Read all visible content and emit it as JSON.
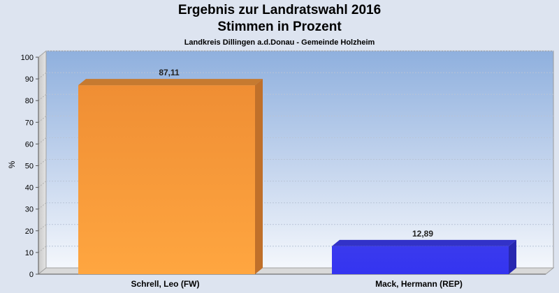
{
  "chart_data": {
    "type": "bar",
    "title": "Ergebnis zur Landratswahl 2016",
    "subtitle_line2": "Stimmen in Prozent",
    "subtitle": "Landkreis Dillingen a.d.Donau - Gemeinde Holzheim",
    "ylabel": "%",
    "xlabel": "",
    "ylim": [
      0,
      100
    ],
    "yticks": [
      0,
      10,
      20,
      30,
      40,
      50,
      60,
      70,
      80,
      90,
      100
    ],
    "categories": [
      "Schrell, Leo (FW)",
      "Mack, Hermann (REP)"
    ],
    "values": [
      87.11,
      12.89
    ],
    "value_labels": [
      "87,11",
      "12,89"
    ],
    "colors": [
      "#f0922c",
      "#3a3aee"
    ],
    "grid": true,
    "style": "3d"
  }
}
